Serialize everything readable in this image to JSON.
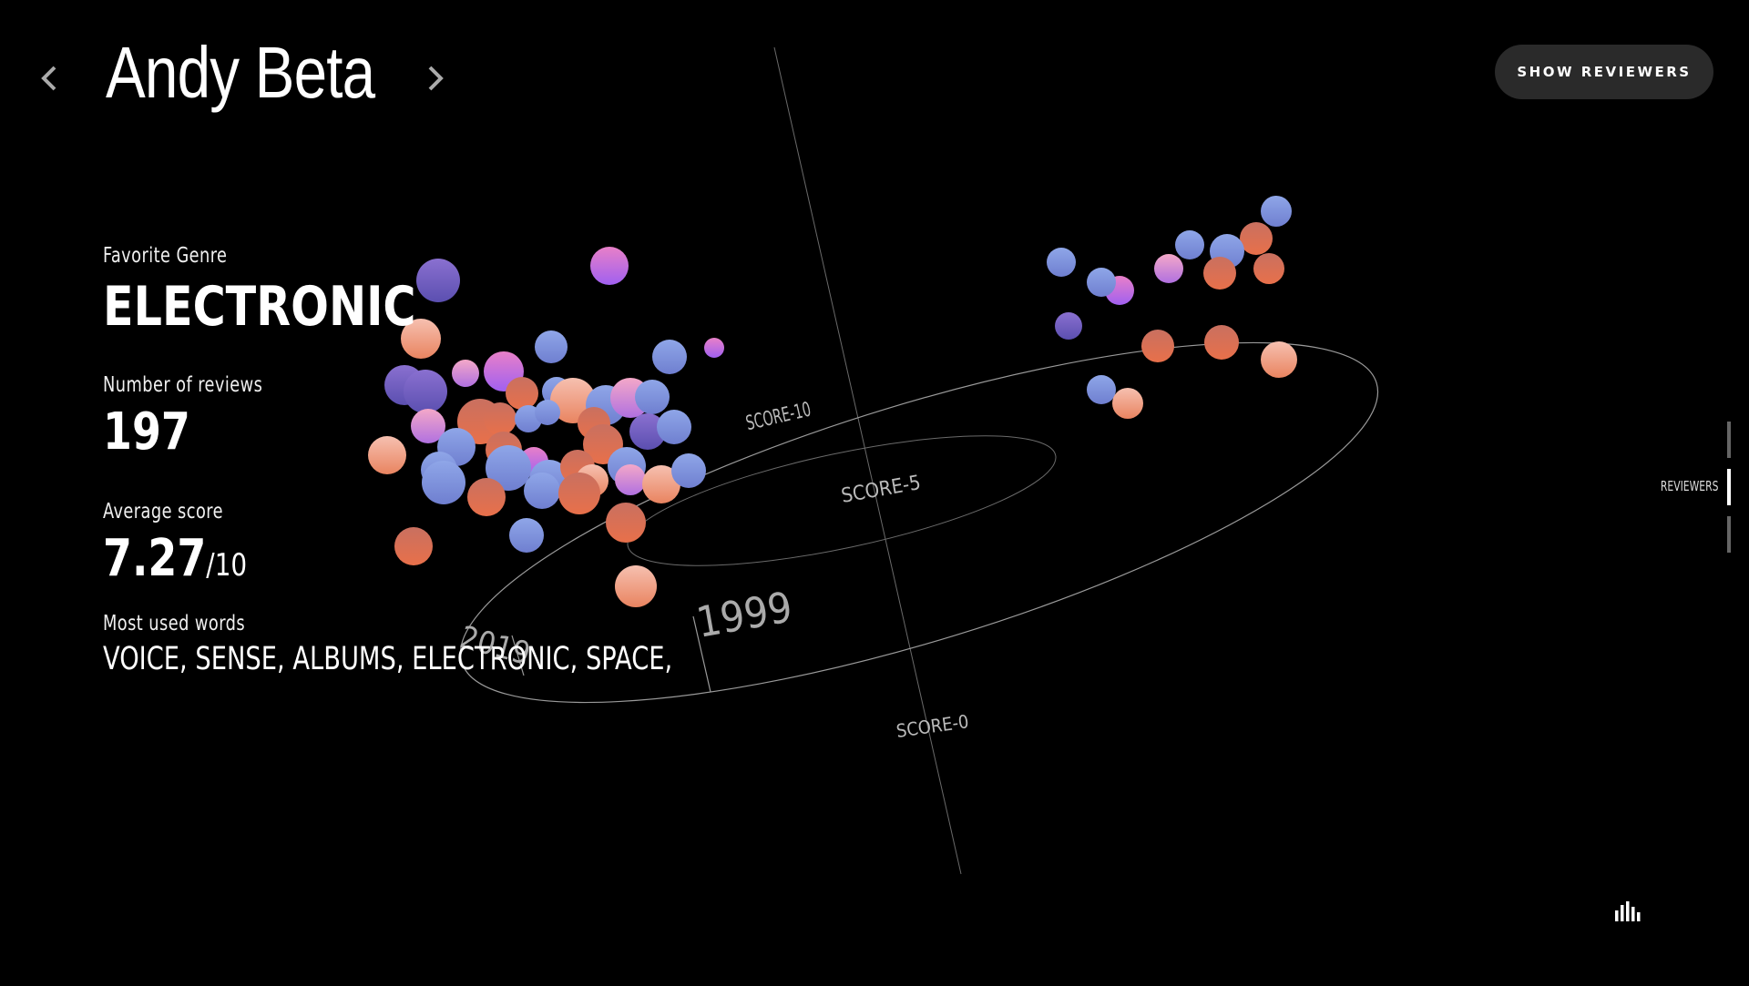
{
  "header": {
    "reviewer_name": "Andy Beta",
    "show_reviewers_label": "SHOW REVIEWERS",
    "prev_icon": "chevron-left-icon",
    "next_icon": "chevron-right-icon"
  },
  "stats": {
    "favorite_genre_label": "Favorite Genre",
    "favorite_genre_value": "ELECTRONIC",
    "reviews_label": "Number of reviews",
    "reviews_value": "197",
    "avg_label": "Average score",
    "avg_value": "7.27",
    "avg_suffix": "/10",
    "words_label": "Most used words",
    "words_value": "VOICE, SENSE, ALBUMS, ELECTRONIC, SPACE,"
  },
  "side_nav": {
    "label": "REVIEWERS"
  },
  "chart_icon": "bar-chart-icon",
  "chart_data": {
    "type": "scatter",
    "axis_labels": {
      "score_10": "SCORE-10",
      "score_5": "SCORE-5",
      "score_0": "SCORE-0",
      "year_start": "1999",
      "year_end": "2019"
    },
    "colors": {
      "background": "#000000",
      "blue": "#7a8fd6",
      "orange": "#e07050",
      "pink": "#f4b0a0",
      "magenta": "#d070e0",
      "purple": "#7a60c8",
      "axis_line": "#8a8a8a"
    }
  }
}
